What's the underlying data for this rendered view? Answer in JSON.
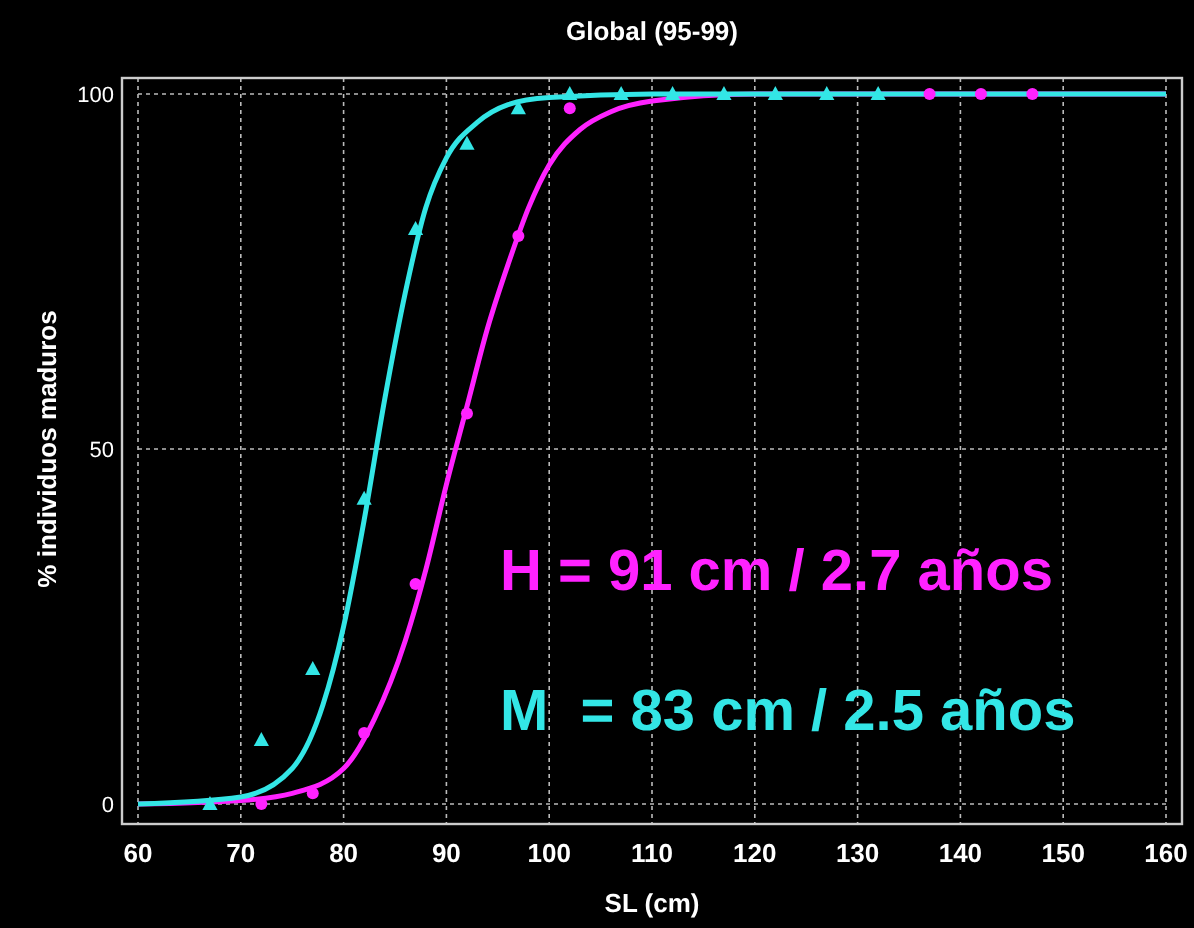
{
  "chart_data": {
    "type": "scatter",
    "title": "Global (95-99)",
    "xlabel": "SL (cm)",
    "ylabel": "% individuos maduros",
    "xlim": [
      60,
      160
    ],
    "xticks": [
      60,
      70,
      80,
      90,
      100,
      110,
      120,
      130,
      140,
      150,
      160
    ],
    "ylim": [
      0,
      100
    ],
    "yticks": [
      0,
      50,
      100
    ],
    "grid": true,
    "annotations": [
      "H = 91 cm / 2.7 años",
      "M  = 83 cm / 2.5 años"
    ],
    "series": [
      {
        "marker": "circle",
        "color": "#ff22ff",
        "x": [
          72,
          77,
          82,
          87,
          92,
          97,
          102,
          137,
          142,
          147
        ],
        "values": [
          0,
          1.5,
          10,
          31,
          55,
          80,
          98,
          100,
          100,
          100
        ]
      },
      {
        "marker": "triangle",
        "color": "#33e6e6",
        "x": [
          67,
          72,
          77,
          82,
          87,
          92,
          97,
          102,
          107,
          112,
          117,
          122,
          127,
          132
        ],
        "values": [
          0,
          9,
          19,
          43,
          81,
          93,
          98,
          100,
          100,
          100,
          100,
          100,
          100,
          100
        ]
      },
      {
        "type": "line",
        "marker": "none",
        "line_style": "solid",
        "color": "#ff22ff",
        "x": [
          60,
          70,
          75,
          80,
          83,
          86,
          88,
          90,
          92,
          94,
          96,
          98,
          100,
          103,
          106,
          110,
          120,
          160
        ],
        "values": [
          0,
          0.5,
          1.5,
          5,
          12,
          23,
          33,
          45,
          56,
          67,
          76,
          84,
          90,
          95,
          97.5,
          99,
          100,
          100
        ]
      },
      {
        "type": "line",
        "marker": "none",
        "line_style": "solid",
        "color": "#33e6e6",
        "x": [
          60,
          70,
          75,
          78,
          80,
          82,
          84,
          86,
          88,
          90,
          93,
          96,
          100,
          110,
          160
        ],
        "values": [
          0,
          1,
          5,
          14,
          25,
          40,
          57,
          72,
          84,
          91,
          96,
          98.5,
          99.5,
          100,
          100
        ]
      }
    ]
  }
}
